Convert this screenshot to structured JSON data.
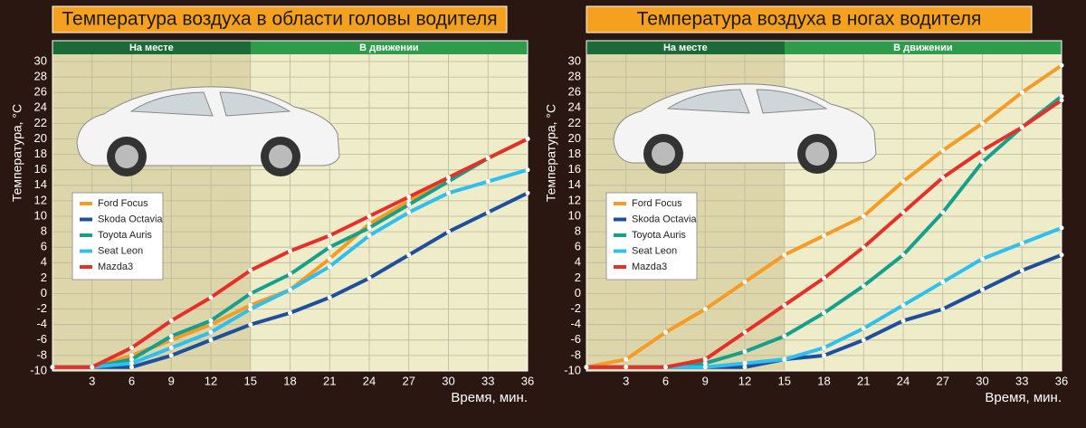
{
  "chart_data": [
    {
      "type": "line",
      "title": "Температура воздуха в области головы водителя",
      "y_label": "Температура, °С",
      "x_label": "Время, мин.",
      "zones": [
        {
          "label": "На месте",
          "from": 0,
          "to": 15
        },
        {
          "label": "В движении",
          "from": 15,
          "to": 36
        }
      ],
      "x": [
        0,
        3,
        6,
        9,
        12,
        15,
        18,
        21,
        24,
        27,
        30,
        33,
        36
      ],
      "xlim": [
        0,
        36
      ],
      "xticks": [
        3,
        6,
        9,
        12,
        15,
        18,
        21,
        24,
        27,
        30,
        33,
        36
      ],
      "ylim": [
        -10,
        30
      ],
      "yticks": [
        -10,
        -8,
        -6,
        -4,
        -2,
        0,
        2,
        4,
        6,
        8,
        10,
        12,
        14,
        16,
        18,
        20,
        22,
        24,
        26,
        28,
        30
      ],
      "grid": true,
      "series": [
        {
          "name": "Ford Focus",
          "color": "#f59b26",
          "values": [
            -9.5,
            -9.5,
            -8,
            -6,
            -4,
            -1.5,
            0.5,
            4.5,
            9,
            12,
            15,
            17.5,
            20
          ]
        },
        {
          "name": "Skoda Octavia",
          "color": "#1d4f9e",
          "values": [
            -9.5,
            -9.5,
            -9.5,
            -8,
            -6,
            -4,
            -2.5,
            -0.5,
            2,
            5,
            8,
            10.5,
            13
          ]
        },
        {
          "name": "Toyota Auris",
          "color": "#16a08c",
          "values": [
            -9.5,
            -9.5,
            -8.5,
            -5.5,
            -3.5,
            0,
            2.5,
            6,
            8.5,
            11.5,
            14.5,
            17.5,
            20
          ]
        },
        {
          "name": "Seat Leon",
          "color": "#2ebfee",
          "values": [
            -9.5,
            -9.5,
            -9,
            -7,
            -5,
            -2,
            0.5,
            3.5,
            7.5,
            10.5,
            13,
            14.5,
            16
          ]
        },
        {
          "name": "Mazda3",
          "color": "#e5302a",
          "values": [
            -9.5,
            -9.5,
            -7,
            -3.5,
            -0.5,
            3,
            5.5,
            7.5,
            10,
            12.5,
            15,
            17.5,
            20
          ]
        }
      ]
    },
    {
      "type": "line",
      "title": "Температура воздуха в ногах водителя",
      "y_label": "Температура, °С",
      "x_label": "Время, мин.",
      "zones": [
        {
          "label": "На месте",
          "from": 0,
          "to": 15
        },
        {
          "label": "В движении",
          "from": 15,
          "to": 36
        }
      ],
      "x": [
        0,
        3,
        6,
        9,
        12,
        15,
        18,
        21,
        24,
        27,
        30,
        33,
        36
      ],
      "xlim": [
        0,
        36
      ],
      "xticks": [
        3,
        6,
        9,
        12,
        15,
        18,
        21,
        24,
        27,
        30,
        33,
        36
      ],
      "ylim": [
        -10,
        30
      ],
      "yticks": [
        -10,
        -8,
        -6,
        -4,
        -2,
        0,
        2,
        4,
        6,
        8,
        10,
        12,
        14,
        16,
        18,
        20,
        22,
        24,
        26,
        28,
        30
      ],
      "grid": true,
      "series": [
        {
          "name": "Ford Focus",
          "color": "#f59b26",
          "values": [
            -9.5,
            -8.5,
            -5,
            -2,
            1.5,
            5,
            7.5,
            10,
            14.5,
            18.5,
            22,
            26,
            29.5
          ]
        },
        {
          "name": "Skoda Octavia",
          "color": "#1d4f9e",
          "values": [
            -9.5,
            -9.5,
            -9.5,
            -9.5,
            -9.5,
            -8.5,
            -8,
            -6,
            -3.5,
            -2,
            0.5,
            3,
            5
          ]
        },
        {
          "name": "Toyota Auris",
          "color": "#16a08c",
          "values": [
            -9.5,
            -9.5,
            -9.5,
            -9,
            -7.5,
            -5.5,
            -2.5,
            1,
            5,
            10.5,
            17,
            21.5,
            25.5
          ]
        },
        {
          "name": "Seat Leon",
          "color": "#2ebfee",
          "values": [
            -9.5,
            -9.5,
            -9.5,
            -9.5,
            -9,
            -8.5,
            -7,
            -4.5,
            -1.5,
            1.5,
            4.5,
            6.5,
            8.5
          ]
        },
        {
          "name": "Mazda3",
          "color": "#e5302a",
          "values": [
            -9.5,
            -9.5,
            -9.5,
            -8.5,
            -5,
            -1.5,
            2,
            6,
            10.5,
            15,
            18.5,
            21.5,
            25
          ]
        }
      ]
    }
  ]
}
